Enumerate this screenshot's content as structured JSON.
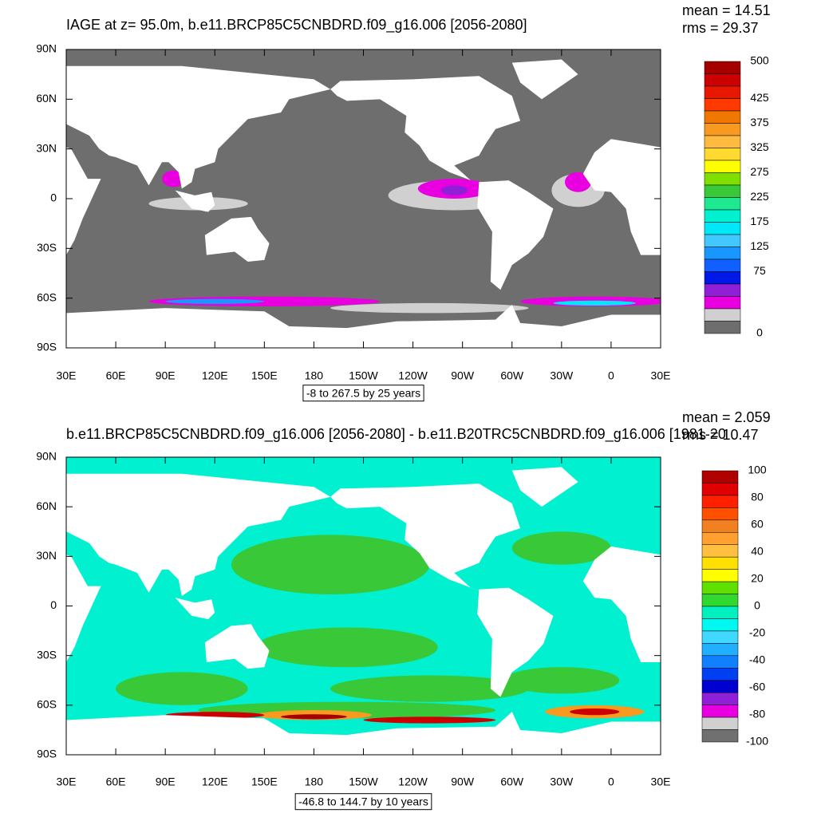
{
  "panels": [
    {
      "title": "IAGE at z=  95.0m, b.e11.BRCP85C5CNBDRD.f09_g16.006 [2056-2080]",
      "mean": "mean = 14.51",
      "rms": "rms = 29.37",
      "info": "-8 to 267.5 by 25 years",
      "colorbar": {
        "colors": [
          "#a50000",
          "#cc0000",
          "#e81800",
          "#ff3a00",
          "#f07800",
          "#f89a20",
          "#ffbb40",
          "#ffd830",
          "#ffff00",
          "#7fe000",
          "#38c838",
          "#20e890",
          "#00f0d0",
          "#00e8f8",
          "#40c8ff",
          "#1898ff",
          "#1060ff",
          "#0018e8",
          "#9020d8",
          "#e800e0",
          "#d0d0d0",
          "#6e6e6e"
        ],
        "labels": [
          "500",
          "425",
          "375",
          "325",
          "275",
          "225",
          "175",
          "125",
          "75",
          "0"
        ]
      }
    },
    {
      "title": "b.e11.BRCP85C5CNBDRD.f09_g16.006 [2056-2080] - b.e11.B20TRC5CNBDRD.f09_g16.006 [1981-20",
      "mean": "mean = 2.059",
      "rms": "rms = 10.47",
      "info": "-46.8 to 144.7 by 10 years",
      "colorbar": {
        "colors": [
          "#b00000",
          "#e00000",
          "#ff2000",
          "#ff5000",
          "#f08020",
          "#ffa030",
          "#ffc040",
          "#ffe000",
          "#ffff00",
          "#60e000",
          "#30d830",
          "#00f0c0",
          "#00f8f0",
          "#40d8ff",
          "#20b0ff",
          "#1080ff",
          "#0040f0",
          "#0000d0",
          "#9020d8",
          "#e800e0",
          "#d0d0d0",
          "#707070"
        ],
        "labels": [
          "100",
          "80",
          "60",
          "40",
          "20",
          "0",
          "-20",
          "-40",
          "-60",
          "-80",
          "-100"
        ]
      }
    }
  ],
  "lat_labels": [
    "90N",
    "60N",
    "30N",
    "0",
    "30S",
    "60S",
    "90S"
  ],
  "lon_labels": [
    "30E",
    "60E",
    "90E",
    "120E",
    "150E",
    "180",
    "150W",
    "120W",
    "90W",
    "60W",
    "30W",
    "0",
    "30E"
  ]
}
